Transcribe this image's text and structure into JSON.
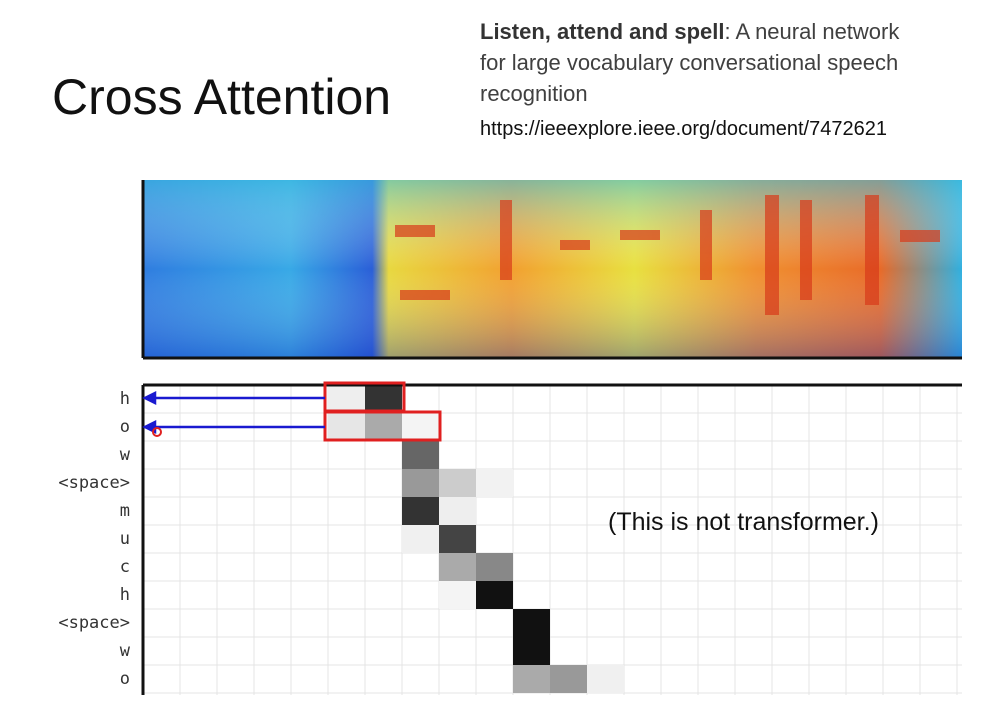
{
  "title": "Cross Attention",
  "reference": {
    "paper_title": "Listen, attend and spell",
    "paper_rest": ": A neural network for large vocabulary conversational speech recognition",
    "url": "https://ieeexplore.ieee.org/document/7472621"
  },
  "attention": {
    "row_labels": [
      "h",
      "o",
      "w",
      "<space>",
      "m",
      "u",
      "c",
      "h",
      "<space>",
      "w",
      "o"
    ]
  },
  "note": "(This is not transformer.)"
}
